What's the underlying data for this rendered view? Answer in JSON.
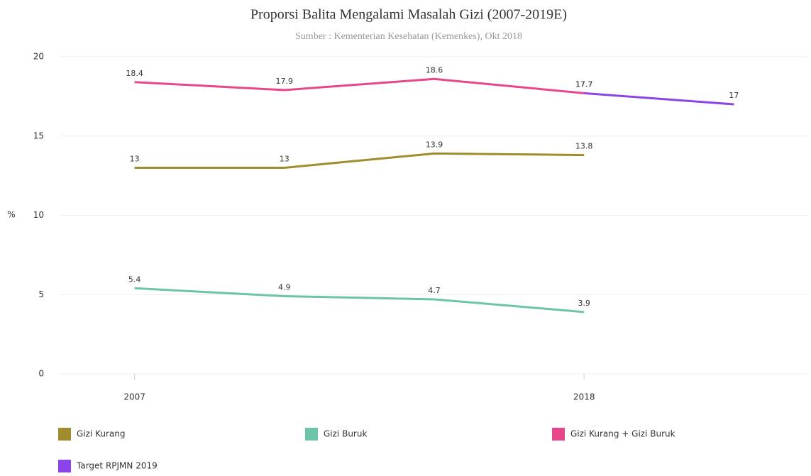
{
  "chart_data": {
    "type": "line",
    "title": "Proporsi Balita Mengalami Masalah Gizi (2007-2019E)",
    "subtitle": "Sumber : Kementerian Kesehatan (Kemenkes), Okt 2018",
    "y_label": "%",
    "categories": [
      "2007",
      null,
      null,
      "2018",
      null
    ],
    "series": [
      {
        "name": "Gizi Kurang",
        "color": "#a08c2c",
        "values": [
          13,
          13,
          13.9,
          13.8,
          null
        ]
      },
      {
        "name": "Gizi Buruk",
        "color": "#6cc4aa",
        "values": [
          5.4,
          4.9,
          4.7,
          3.9,
          null
        ]
      },
      {
        "name": "Gizi Kurang + Gizi Buruk",
        "color": "#e8468a",
        "values": [
          18.4,
          17.9,
          18.6,
          17.7,
          null
        ]
      },
      {
        "name": "Target RPJMN 2019",
        "color": "#8c44e8",
        "values": [
          null,
          null,
          null,
          17.7,
          17
        ]
      }
    ],
    "ylim": [
      0,
      20
    ],
    "yticks": [
      0,
      5,
      10,
      15,
      20
    ],
    "grid": true
  }
}
